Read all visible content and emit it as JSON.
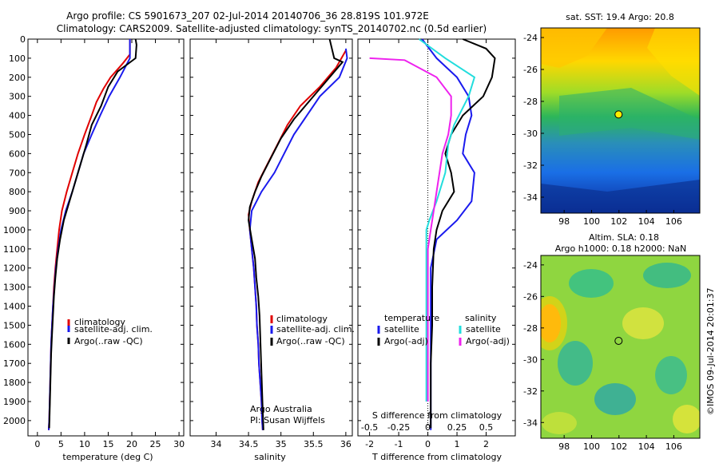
{
  "header": {
    "line1": "Argo profile: CS 5901673_207 02-Jul-2014 20140706_36 28.819S 101.972E",
    "line2": "Climatology: CARS2009. Satellite-adjusted climatology: synTS_20140702.nc (0.5d earlier)"
  },
  "colors": {
    "climatology": "#e00000",
    "satellite": "#1a1aee",
    "argo": "#000000",
    "cyan": "#22dddd",
    "magenta": "#ee22ee"
  },
  "chart_data": [
    {
      "type": "line",
      "xlabel": "temperature (deg C)",
      "xlim": [
        -2,
        31
      ],
      "ylim": [
        2080,
        0
      ],
      "x_ticks": [
        "0",
        "5",
        "10",
        "15",
        "20",
        "25",
        "30"
      ],
      "y_ticks": [
        "0",
        "100",
        "200",
        "300",
        "400",
        "500",
        "600",
        "700",
        "800",
        "900",
        "1000",
        "1100",
        "1200",
        "1300",
        "1400",
        "1500",
        "1600",
        "1700",
        "1800",
        "1900",
        "2000"
      ],
      "legend": [
        "climatology",
        "satellite-adj. clim.",
        "Argo(..raw -QC)"
      ],
      "series": [
        {
          "name": "climatology",
          "color": "#e00000",
          "points": [
            [
              19.6,
              0
            ],
            [
              19.6,
              80
            ],
            [
              18,
              130
            ],
            [
              15.5,
              200
            ],
            [
              14,
              260
            ],
            [
              12.5,
              330
            ],
            [
              11.5,
              400
            ],
            [
              10,
              500
            ],
            [
              8.6,
              600
            ],
            [
              7.4,
              700
            ],
            [
              6.2,
              800
            ],
            [
              5.2,
              900
            ],
            [
              4.6,
              1000
            ],
            [
              4.2,
              1100
            ],
            [
              3.8,
              1200
            ],
            [
              3.5,
              1300
            ],
            [
              3.3,
              1400
            ],
            [
              3.1,
              1500
            ],
            [
              2.9,
              1600
            ],
            [
              2.8,
              1700
            ],
            [
              2.7,
              1800
            ],
            [
              2.6,
              1900
            ],
            [
              2.5,
              2000
            ],
            [
              2.4,
              2050
            ]
          ]
        },
        {
          "name": "satellite-adj. clim.",
          "color": "#1a1aee",
          "points": [
            [
              19.6,
              0
            ],
            [
              19.6,
              100
            ],
            [
              17.5,
              200
            ],
            [
              15.2,
              300
            ],
            [
              13.3,
              400
            ],
            [
              11.5,
              500
            ],
            [
              9.8,
              600
            ],
            [
              8.6,
              700
            ],
            [
              7.4,
              800
            ],
            [
              6,
              900
            ],
            [
              5,
              1000
            ],
            [
              4.4,
              1100
            ],
            [
              3.9,
              1200
            ],
            [
              3.6,
              1300
            ],
            [
              3.3,
              1400
            ],
            [
              3.1,
              1500
            ],
            [
              2.9,
              1600
            ],
            [
              2.8,
              1700
            ],
            [
              2.7,
              1800
            ],
            [
              2.6,
              1900
            ],
            [
              2.5,
              2000
            ],
            [
              2.4,
              2050
            ]
          ]
        },
        {
          "name": "Argo(..raw -QC)",
          "color": "#000000",
          "points": [
            [
              20.8,
              0
            ],
            [
              21,
              30
            ],
            [
              20.8,
              100
            ],
            [
              17,
              170
            ],
            [
              15,
              250
            ],
            [
              13.5,
              350
            ],
            [
              11.5,
              450
            ],
            [
              10.4,
              550
            ],
            [
              9.2,
              650
            ],
            [
              8,
              750
            ],
            [
              6.8,
              850
            ],
            [
              5.6,
              950
            ],
            [
              4.8,
              1050
            ],
            [
              4.2,
              1150
            ],
            [
              3.8,
              1250
            ],
            [
              3.5,
              1350
            ],
            [
              3.3,
              1450
            ],
            [
              3.1,
              1550
            ],
            [
              2.9,
              1650
            ],
            [
              2.8,
              1750
            ],
            [
              2.7,
              1850
            ],
            [
              2.6,
              1950
            ],
            [
              2.5,
              2040
            ]
          ]
        }
      ]
    },
    {
      "type": "line",
      "xlabel": "salinity",
      "xlim": [
        33.6,
        36.1
      ],
      "ylim": [
        2080,
        0
      ],
      "x_ticks": [
        "34",
        "34.5",
        "35",
        "35.5",
        "36"
      ],
      "legend": [
        "climatology",
        "satellite-adj. clim.",
        "Argo(..raw -QC)"
      ],
      "annotations": [
        "Argo Australia",
        "PI: Susan Wijffels"
      ],
      "series": [
        {
          "name": "climatology",
          "color": "#e00000",
          "points": [
            [
              36.0,
              60
            ],
            [
              35.85,
              150
            ],
            [
              35.6,
              250
            ],
            [
              35.3,
              350
            ],
            [
              35.1,
              450
            ],
            [
              34.95,
              550
            ],
            [
              34.8,
              650
            ],
            [
              34.65,
              750
            ],
            [
              34.55,
              850
            ],
            [
              34.5,
              920
            ],
            [
              34.52,
              1000
            ],
            [
              34.55,
              1100
            ],
            [
              34.58,
              1200
            ],
            [
              34.6,
              1300
            ],
            [
              34.62,
              1400
            ],
            [
              34.63,
              1500
            ],
            [
              34.65,
              1600
            ],
            [
              34.66,
              1700
            ],
            [
              34.68,
              1800
            ],
            [
              34.7,
              1900
            ],
            [
              34.71,
              2000
            ],
            [
              34.72,
              2050
            ]
          ]
        },
        {
          "name": "satellite-adj. clim.",
          "color": "#1a1aee",
          "points": [
            [
              36.0,
              50
            ],
            [
              36.02,
              100
            ],
            [
              35.9,
              200
            ],
            [
              35.6,
              300
            ],
            [
              35.4,
              400
            ],
            [
              35.2,
              500
            ],
            [
              35.05,
              600
            ],
            [
              34.9,
              700
            ],
            [
              34.7,
              800
            ],
            [
              34.55,
              900
            ],
            [
              34.52,
              1000
            ],
            [
              34.55,
              1100
            ],
            [
              34.58,
              1200
            ],
            [
              34.6,
              1300
            ],
            [
              34.62,
              1400
            ],
            [
              34.63,
              1500
            ],
            [
              34.65,
              1600
            ],
            [
              34.66,
              1700
            ],
            [
              34.68,
              1800
            ],
            [
              34.7,
              1900
            ],
            [
              34.71,
              2000
            ],
            [
              34.72,
              2050
            ]
          ]
        },
        {
          "name": "Argo(..raw -QC)",
          "color": "#000000",
          "points": [
            [
              35.75,
              0
            ],
            [
              35.82,
              100
            ],
            [
              35.95,
              120
            ],
            [
              35.7,
              220
            ],
            [
              35.45,
              320
            ],
            [
              35.2,
              420
            ],
            [
              35,
              520
            ],
            [
              34.85,
              620
            ],
            [
              34.7,
              720
            ],
            [
              34.6,
              800
            ],
            [
              34.52,
              880
            ],
            [
              34.5,
              950
            ],
            [
              34.55,
              1050
            ],
            [
              34.6,
              1150
            ],
            [
              34.62,
              1250
            ],
            [
              34.65,
              1350
            ],
            [
              34.67,
              1450
            ],
            [
              34.68,
              1550
            ],
            [
              34.69,
              1650
            ],
            [
              34.7,
              1750
            ],
            [
              34.71,
              1850
            ],
            [
              34.72,
              1950
            ],
            [
              34.73,
              2050
            ]
          ]
        }
      ]
    },
    {
      "type": "line",
      "xlabel": "T difference from climatology",
      "xlabel_top": "S difference from climatology",
      "xlim": [
        -2.4,
        3.0
      ],
      "ylim": [
        2080,
        0
      ],
      "x_ticks": [
        "-2",
        "-1",
        "0",
        "1",
        "2"
      ],
      "x_ticks_top": [
        "-0.5",
        "-0.25",
        "0",
        "0.25",
        "0.5"
      ],
      "legend": {
        "temperature_title": "temperature",
        "salinity_title": "salinity",
        "entries": [
          "satellite",
          "Argo(-adj)",
          "satellite",
          "Argo(-adj)"
        ]
      },
      "series": [
        {
          "name": "satellite",
          "group": "temperature",
          "color": "#1a1aee",
          "points": [
            [
              -0.2,
              0
            ],
            [
              0.3,
              100
            ],
            [
              1,
              200
            ],
            [
              1.4,
              300
            ],
            [
              1.5,
              400
            ],
            [
              1.3,
              500
            ],
            [
              1.2,
              600
            ],
            [
              1.6,
              700
            ],
            [
              1.5,
              850
            ],
            [
              1,
              950
            ],
            [
              0.3,
              1050
            ],
            [
              0.1,
              1200
            ],
            [
              0.1,
              1400
            ],
            [
              0.1,
              2050
            ]
          ]
        },
        {
          "name": "Argo(-adj)",
          "group": "temperature",
          "color": "#000000",
          "points": [
            [
              1.2,
              0
            ],
            [
              2,
              50
            ],
            [
              2.3,
              100
            ],
            [
              2.2,
              200
            ],
            [
              1.9,
              300
            ],
            [
              1.2,
              400
            ],
            [
              0.8,
              500
            ],
            [
              0.6,
              600
            ],
            [
              0.8,
              700
            ],
            [
              0.9,
              800
            ],
            [
              0.5,
              900
            ],
            [
              0.3,
              1000
            ],
            [
              0.2,
              1100
            ],
            [
              0.15,
              1300
            ],
            [
              0.15,
              1500
            ],
            [
              0.1,
              1700
            ],
            [
              0.1,
              2040
            ]
          ]
        },
        {
          "name": "satellite",
          "group": "salinity",
          "color": "#22dddd",
          "points": [
            [
              -0.3,
              0
            ],
            [
              0.6,
              100
            ],
            [
              1.6,
              200
            ],
            [
              1.4,
              300
            ],
            [
              0.9,
              450
            ],
            [
              0.7,
              550
            ],
            [
              0.6,
              700
            ],
            [
              0.3,
              850
            ],
            [
              0.05,
              950
            ],
            [
              -0.05,
              1000
            ],
            [
              -0.05,
              1200
            ],
            [
              -0.05,
              1400
            ],
            [
              -0.05,
              1600
            ],
            [
              -0.05,
              1900
            ]
          ]
        },
        {
          "name": "Argo(-adj)",
          "group": "salinity",
          "color": "#ee22ee",
          "points": [
            [
              -2,
              100
            ],
            [
              -0.8,
              110
            ],
            [
              0.3,
              200
            ],
            [
              0.8,
              300
            ],
            [
              0.8,
              400
            ],
            [
              0.7,
              500
            ],
            [
              0.5,
              600
            ],
            [
              0.3,
              800
            ],
            [
              0.2,
              900
            ],
            [
              0.1,
              1000
            ],
            [
              0,
              1100
            ],
            [
              0,
              1300
            ],
            [
              0,
              1600
            ],
            [
              0,
              1900
            ]
          ]
        }
      ]
    },
    {
      "type": "heatmap",
      "title": "sat. SST: 19.4  Argo: 20.8",
      "x_ticks": [
        "98",
        "100",
        "102",
        "104",
        "106"
      ],
      "y_ticks": [
        "-24",
        "-26",
        "-28",
        "-30",
        "-32",
        "-34"
      ],
      "xlim": [
        96.3,
        107.9
      ],
      "ylim": [
        -35,
        -23.4
      ],
      "marker": {
        "lon": 101.972,
        "lat": -28.819
      }
    },
    {
      "type": "heatmap",
      "title_line1": "Altim. SLA: 0.18",
      "title_line2": "Argo h1000: 0.18 h2000: NaN",
      "x_ticks": [
        "98",
        "100",
        "102",
        "104",
        "106"
      ],
      "y_ticks": [
        "-24",
        "-26",
        "-28",
        "-30",
        "-32",
        "-34"
      ],
      "xlim": [
        96.3,
        107.9
      ],
      "ylim": [
        -35,
        -23.4
      ],
      "marker": {
        "lon": 101.972,
        "lat": -28.819
      }
    }
  ],
  "footer": {
    "stamp": "©IMOS 09-Jul-2014 20:01:37"
  }
}
